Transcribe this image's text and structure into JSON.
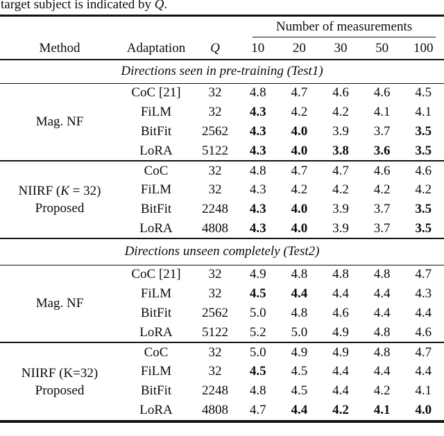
{
  "caption": {
    "prefix": "target subject is indicated by ",
    "math": "Q",
    "suffix": "."
  },
  "header": {
    "group_label": "Number of measurements",
    "columns": [
      "Method",
      "Adaptation",
      "Q",
      "10",
      "20",
      "30",
      "50",
      "100"
    ]
  },
  "sections": [
    {
      "title": "Directions seen in pre-training (Test1)",
      "groups": [
        {
          "method_lines": [
            [
              {
                "t": "Mag. NF"
              }
            ]
          ],
          "rows": [
            {
              "adaptation": "CoC [21]",
              "q": "32",
              "values": [
                "4.8",
                "4.7",
                "4.6",
                "4.6",
                "4.5"
              ],
              "bold": [
                false,
                false,
                false,
                false,
                false
              ]
            },
            {
              "adaptation": "FiLM",
              "q": "32",
              "values": [
                "4.3",
                "4.2",
                "4.2",
                "4.1",
                "4.1"
              ],
              "bold": [
                true,
                false,
                false,
                false,
                false
              ]
            },
            {
              "adaptation": "BitFit",
              "q": "2562",
              "values": [
                "4.3",
                "4.0",
                "3.9",
                "3.7",
                "3.5"
              ],
              "bold": [
                true,
                true,
                false,
                false,
                true
              ]
            },
            {
              "adaptation": "LoRA",
              "q": "5122",
              "values": [
                "4.3",
                "4.0",
                "3.8",
                "3.6",
                "3.5"
              ],
              "bold": [
                true,
                true,
                true,
                true,
                true
              ]
            }
          ]
        },
        {
          "method_lines": [
            [
              {
                "t": "NIIRF ("
              },
              {
                "t": "K",
                "i": true
              },
              {
                "t": " = 32)"
              }
            ],
            [
              {
                "t": "Proposed"
              }
            ]
          ],
          "rows": [
            {
              "adaptation": "CoC",
              "q": "32",
              "values": [
                "4.8",
                "4.7",
                "4.7",
                "4.6",
                "4.6"
              ],
              "bold": [
                false,
                false,
                false,
                false,
                false
              ]
            },
            {
              "adaptation": "FiLM",
              "q": "32",
              "values": [
                "4.3",
                "4.2",
                "4.2",
                "4.2",
                "4.2"
              ],
              "bold": [
                false,
                false,
                false,
                false,
                false
              ]
            },
            {
              "adaptation": "BitFit",
              "q": "2248",
              "values": [
                "4.3",
                "4.0",
                "3.9",
                "3.7",
                "3.5"
              ],
              "bold": [
                true,
                true,
                false,
                false,
                true
              ]
            },
            {
              "adaptation": "LoRA",
              "q": "4808",
              "values": [
                "4.3",
                "4.0",
                "3.9",
                "3.7",
                "3.5"
              ],
              "bold": [
                true,
                true,
                false,
                false,
                true
              ]
            }
          ]
        }
      ]
    },
    {
      "title": "Directions unseen completely (Test2)",
      "groups": [
        {
          "method_lines": [
            [
              {
                "t": "Mag. NF"
              }
            ]
          ],
          "rows": [
            {
              "adaptation": "CoC [21]",
              "q": "32",
              "values": [
                "4.9",
                "4.8",
                "4.8",
                "4.8",
                "4.7"
              ],
              "bold": [
                false,
                false,
                false,
                false,
                false
              ]
            },
            {
              "adaptation": "FiLM",
              "q": "32",
              "values": [
                "4.5",
                "4.4",
                "4.4",
                "4.4",
                "4.3"
              ],
              "bold": [
                true,
                true,
                false,
                false,
                false
              ]
            },
            {
              "adaptation": "BitFit",
              "q": "2562",
              "values": [
                "5.0",
                "4.8",
                "4.6",
                "4.4",
                "4.4"
              ],
              "bold": [
                false,
                false,
                false,
                false,
                false
              ]
            },
            {
              "adaptation": "LoRA",
              "q": "5122",
              "values": [
                "5.2",
                "5.0",
                "4.9",
                "4.8",
                "4.6"
              ],
              "bold": [
                false,
                false,
                false,
                false,
                false
              ]
            }
          ]
        },
        {
          "method_lines": [
            [
              {
                "t": "NIIRF (K=32)"
              }
            ],
            [
              {
                "t": "Proposed"
              }
            ]
          ],
          "rows": [
            {
              "adaptation": "CoC",
              "q": "32",
              "values": [
                "5.0",
                "4.9",
                "4.9",
                "4.8",
                "4.7"
              ],
              "bold": [
                false,
                false,
                false,
                false,
                false
              ]
            },
            {
              "adaptation": "FiLM",
              "q": "32",
              "values": [
                "4.5",
                "4.5",
                "4.4",
                "4.4",
                "4.4"
              ],
              "bold": [
                true,
                false,
                false,
                false,
                false
              ]
            },
            {
              "adaptation": "BitFit",
              "q": "2248",
              "values": [
                "4.8",
                "4.5",
                "4.4",
                "4.2",
                "4.1"
              ],
              "bold": [
                false,
                false,
                false,
                false,
                false
              ]
            },
            {
              "adaptation": "LoRA",
              "q": "4808",
              "values": [
                "4.7",
                "4.4",
                "4.2",
                "4.1",
                "4.0"
              ],
              "bold": [
                false,
                true,
                true,
                true,
                true
              ]
            }
          ]
        }
      ]
    }
  ]
}
